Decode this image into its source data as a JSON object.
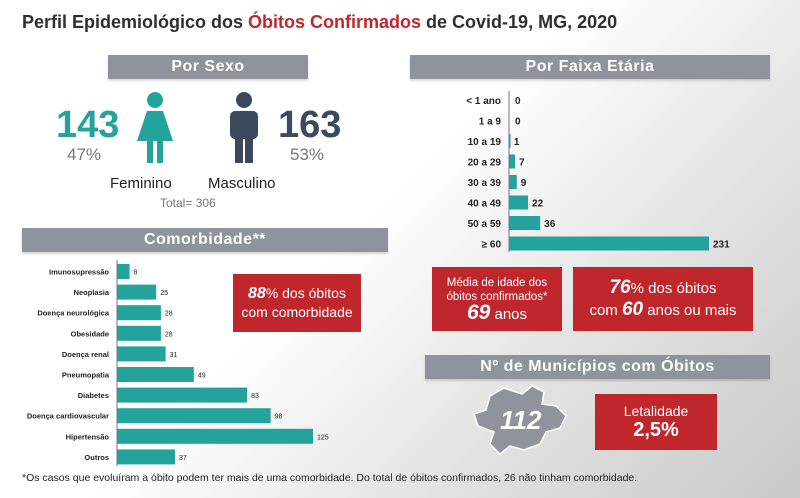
{
  "title": {
    "part1": "Perfil Epidemiológico dos ",
    "highlight": "Óbitos Confirmados",
    "part2": " de Covid-19, MG, 2020"
  },
  "sexo": {
    "header": "Por Sexo",
    "female": {
      "count": "143",
      "pct": "47%",
      "label": "Feminino",
      "color": "#23a39b"
    },
    "male": {
      "count": "163",
      "pct": "53%",
      "label": "Masculino",
      "color": "#3a4a5c"
    },
    "total": "Total= 306"
  },
  "faixa": {
    "header": "Por Faixa Etária"
  },
  "comorbidade": {
    "header": "Comorbidade**"
  },
  "callouts": {
    "comorb": {
      "num": "88",
      "text1": "% dos óbitos",
      "text2": "com comorbidade"
    },
    "media": {
      "line1": "Média de idade dos",
      "line2": "óbitos confirmados*",
      "num": "69",
      "unit": " anos"
    },
    "sessenta": {
      "num1": "76",
      "text1": "% dos óbitos",
      "pre2": "com ",
      "num2": "60",
      "text2": " anos ou mais"
    }
  },
  "municipios": {
    "header": "Nº de Municípios com Óbitos",
    "count": "112"
  },
  "letalidade": {
    "label": "Letalidade",
    "value": "2,5%"
  },
  "footnote": "*Os casos que evoluíram a óbito podem ter mais de uma comorbidade. Do total de óbitos confirmados, 26 não tinham comorbidade.",
  "colors": {
    "teal": "#23a39b",
    "red": "#c0272d",
    "banner": "#8e939c"
  },
  "chart_data": [
    {
      "type": "bar",
      "orientation": "horizontal",
      "categories": [
        "< 1 ano",
        "1 a 9",
        "10 a 19",
        "20 a 29",
        "30 a 39",
        "40 a 49",
        "50 a 59",
        "≥ 60"
      ],
      "values": [
        0,
        0,
        1,
        7,
        9,
        22,
        36,
        231
      ],
      "xlim": [
        0,
        231
      ]
    },
    {
      "type": "bar",
      "orientation": "horizontal",
      "categories": [
        "Imunosupressão",
        "Neoplasia",
        "Doença neurológica",
        "Obesidade",
        "Doença renal",
        "Pneumopatia",
        "Diabetes",
        "Doença cardiovascular",
        "Hipertensão",
        "Outros"
      ],
      "values": [
        8,
        25,
        28,
        28,
        31,
        49,
        83,
        98,
        125,
        37
      ],
      "xlim": [
        0,
        125
      ]
    }
  ]
}
